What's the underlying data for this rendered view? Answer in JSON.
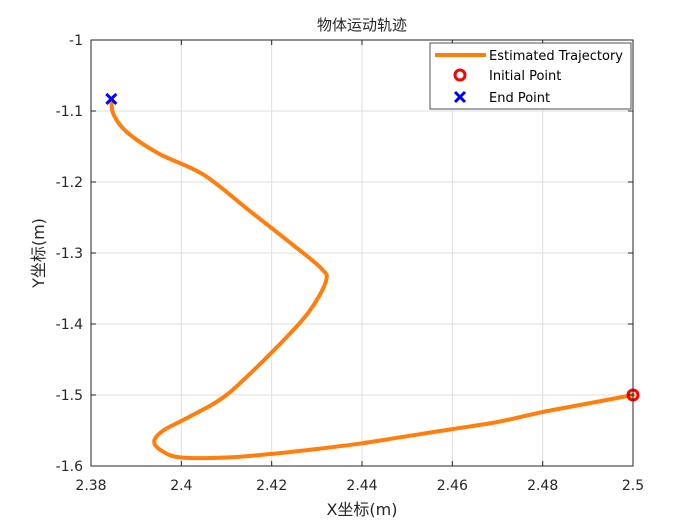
{
  "chart_data": {
    "type": "line",
    "title": "物体运动轨迹",
    "xlabel": "X坐标(m)",
    "ylabel": "Y坐标(m)",
    "xlim": [
      2.38,
      2.5
    ],
    "ylim": [
      -1.6,
      -1.0
    ],
    "xticks": [
      2.38,
      2.4,
      2.42,
      2.44,
      2.46,
      2.48,
      2.5
    ],
    "yticks": [
      -1.0,
      -1.1,
      -1.2,
      -1.3,
      -1.4,
      -1.5,
      -1.6
    ],
    "xtick_labels": [
      "2.38",
      "2.4",
      "2.42",
      "2.44",
      "2.46",
      "2.48",
      "2.5"
    ],
    "ytick_labels": [
      "-1",
      "-1.1",
      "-1.2",
      "-1.3",
      "-1.4",
      "-1.5",
      "-1.6"
    ],
    "grid": true,
    "legend_position": "top-right",
    "series": [
      {
        "name": "Estimated Trajectory",
        "color": "#ff7f0e",
        "x": [
          2.5,
          2.49,
          2.48,
          2.47,
          2.46,
          2.45,
          2.44,
          2.43,
          2.42,
          2.41,
          2.4,
          2.396,
          2.394,
          2.396,
          2.402,
          2.41,
          2.42,
          2.428,
          2.432,
          2.431,
          2.425,
          2.415,
          2.405,
          2.395,
          2.388,
          2.385,
          2.3845
        ],
        "y": [
          -1.5,
          -1.512,
          -1.524,
          -1.538,
          -1.548,
          -1.558,
          -1.568,
          -1.576,
          -1.583,
          -1.588,
          -1.588,
          -1.58,
          -1.566,
          -1.55,
          -1.53,
          -1.5,
          -1.44,
          -1.385,
          -1.34,
          -1.322,
          -1.29,
          -1.24,
          -1.19,
          -1.16,
          -1.13,
          -1.105,
          -1.083
        ]
      }
    ],
    "markers": [
      {
        "name": "Initial Point",
        "symbol": "circle",
        "color": "#ff0000",
        "x": 2.5,
        "y": -1.5
      },
      {
        "name": "End Point",
        "symbol": "x",
        "color": "#0000ff",
        "x": 2.3845,
        "y": -1.083
      }
    ]
  }
}
